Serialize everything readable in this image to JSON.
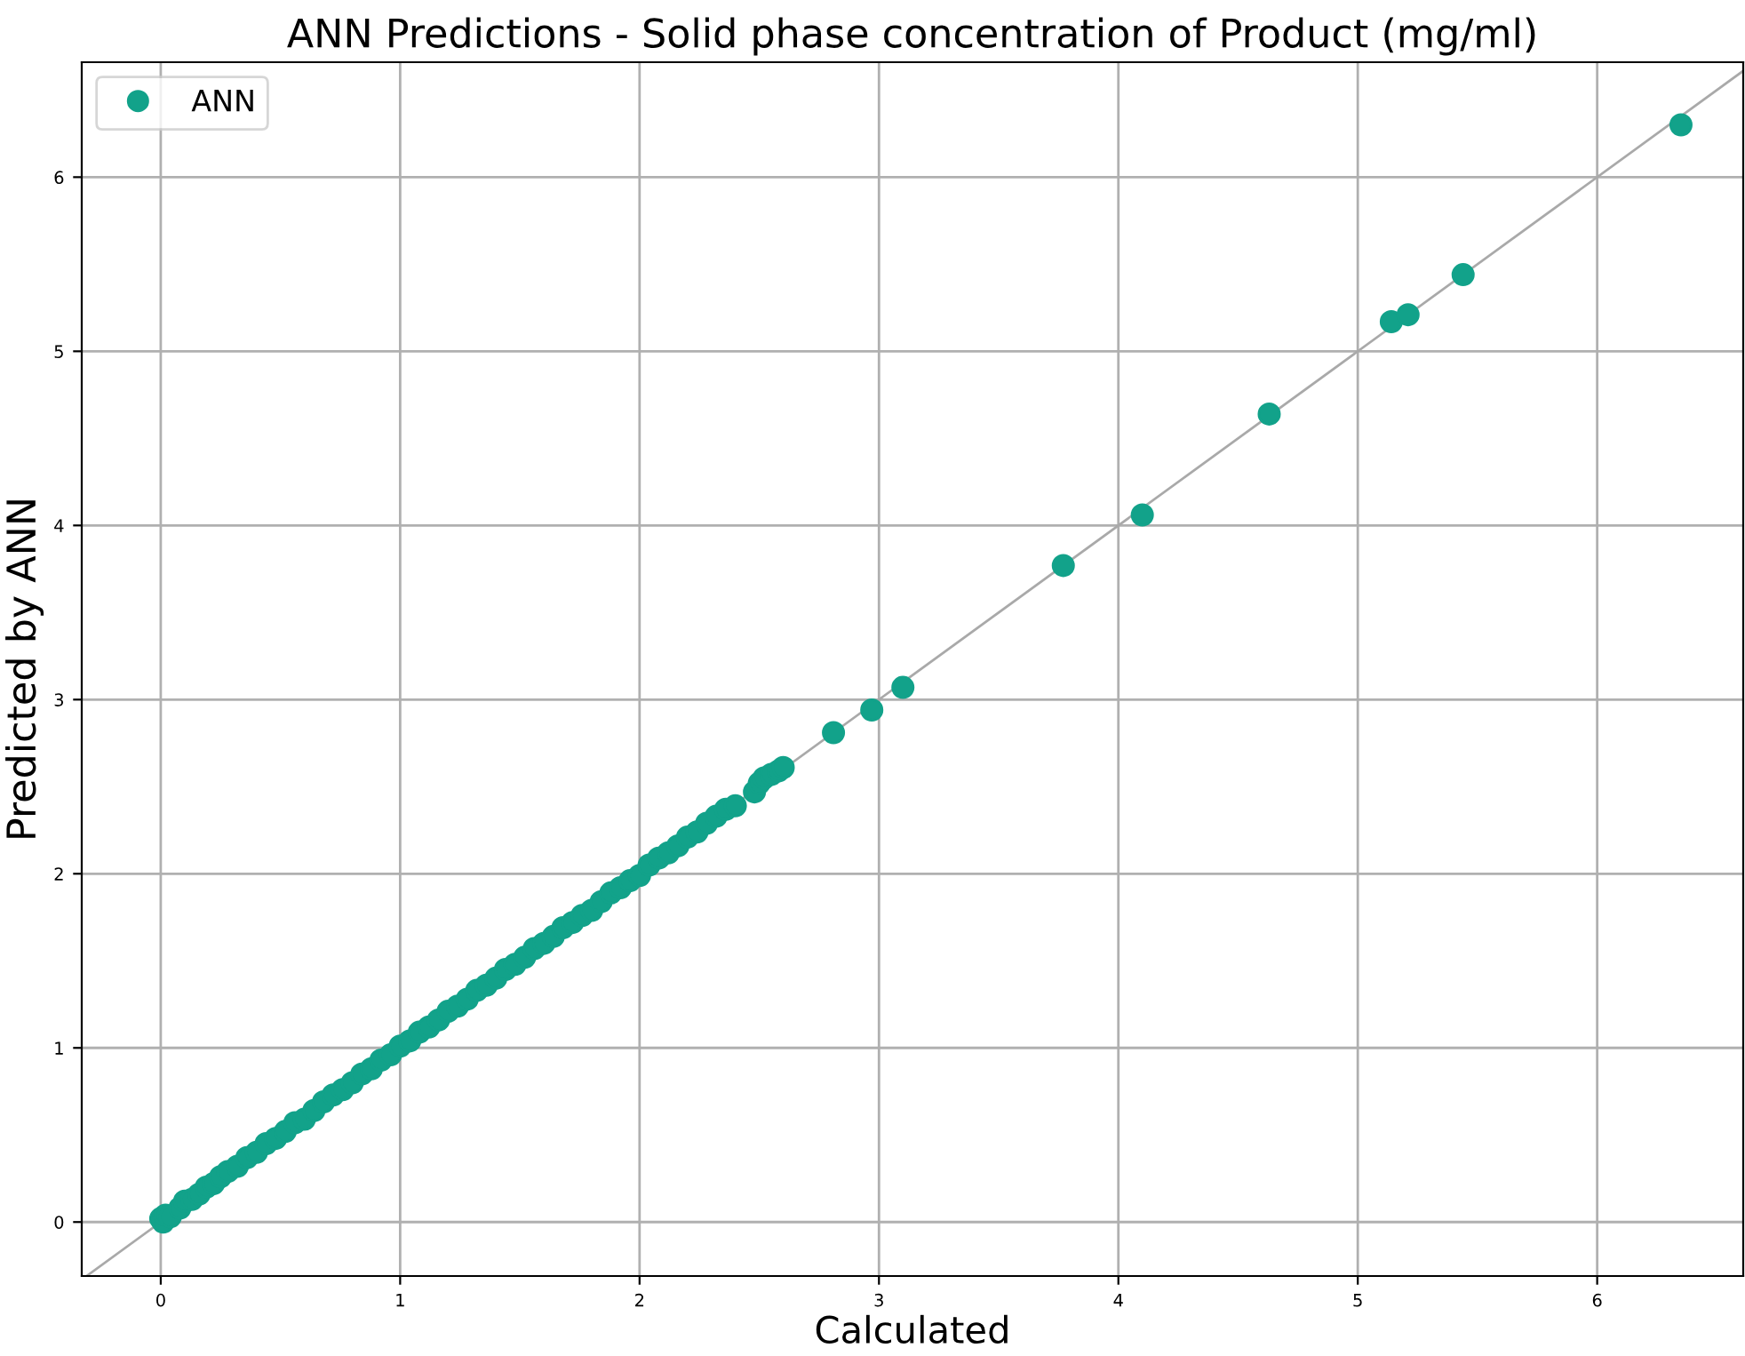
{
  "chart_data": {
    "type": "scatter",
    "title": "ANN Predictions - Solid phase concentration of Product (mg/ml)",
    "xlabel": "Calculated",
    "ylabel": "Predicted by ANN",
    "xlim": [
      -0.33,
      6.61
    ],
    "ylim": [
      -0.31,
      6.66
    ],
    "xticks": [
      0,
      1,
      2,
      3,
      4,
      5,
      6
    ],
    "yticks": [
      0,
      1,
      2,
      3,
      4,
      5,
      6
    ],
    "grid": true,
    "legend": "top left",
    "marker": "circle",
    "series": [
      {
        "name": "ANN",
        "color": "#12a28a",
        "x": [
          0.0,
          0.01,
          0.02,
          0.04,
          0.08,
          0.1,
          0.13,
          0.16,
          0.19,
          0.22,
          0.25,
          0.28,
          0.32,
          0.36,
          0.4,
          0.44,
          0.48,
          0.52,
          0.56,
          0.6,
          0.64,
          0.68,
          0.72,
          0.76,
          0.8,
          0.84,
          0.88,
          0.92,
          0.96,
          1.0,
          1.04,
          1.08,
          1.12,
          1.16,
          1.2,
          1.24,
          1.28,
          1.32,
          1.36,
          1.4,
          1.44,
          1.48,
          1.52,
          1.56,
          1.6,
          1.64,
          1.68,
          1.72,
          1.76,
          1.8,
          1.84,
          1.88,
          1.92,
          1.96,
          2.0,
          2.04,
          2.08,
          2.12,
          2.16,
          2.2,
          2.24,
          2.28,
          2.32,
          2.36,
          2.4,
          2.48,
          2.5,
          2.52,
          2.55,
          2.58,
          2.6,
          2.81,
          2.97,
          3.1,
          3.77,
          4.1,
          4.63,
          5.14,
          5.21,
          5.44,
          6.35
        ],
        "values": [
          0.02,
          0.0,
          0.04,
          0.03,
          0.08,
          0.12,
          0.13,
          0.16,
          0.2,
          0.22,
          0.26,
          0.29,
          0.32,
          0.37,
          0.4,
          0.45,
          0.48,
          0.52,
          0.57,
          0.59,
          0.64,
          0.69,
          0.73,
          0.76,
          0.8,
          0.85,
          0.88,
          0.93,
          0.96,
          1.01,
          1.04,
          1.09,
          1.12,
          1.16,
          1.21,
          1.24,
          1.28,
          1.33,
          1.36,
          1.4,
          1.45,
          1.48,
          1.52,
          1.57,
          1.6,
          1.64,
          1.69,
          1.72,
          1.76,
          1.79,
          1.84,
          1.89,
          1.92,
          1.96,
          1.99,
          2.05,
          2.09,
          2.12,
          2.16,
          2.21,
          2.24,
          2.29,
          2.33,
          2.37,
          2.39,
          2.47,
          2.52,
          2.55,
          2.57,
          2.59,
          2.61,
          2.81,
          2.94,
          3.07,
          3.77,
          4.06,
          4.64,
          5.17,
          5.21,
          5.44,
          6.3
        ]
      },
      {
        "color": "#a9a9a9",
        "type": "line",
        "marker": "none",
        "x": [
          -0.31,
          6.61
        ],
        "values": [
          -0.31,
          6.61
        ]
      }
    ]
  }
}
